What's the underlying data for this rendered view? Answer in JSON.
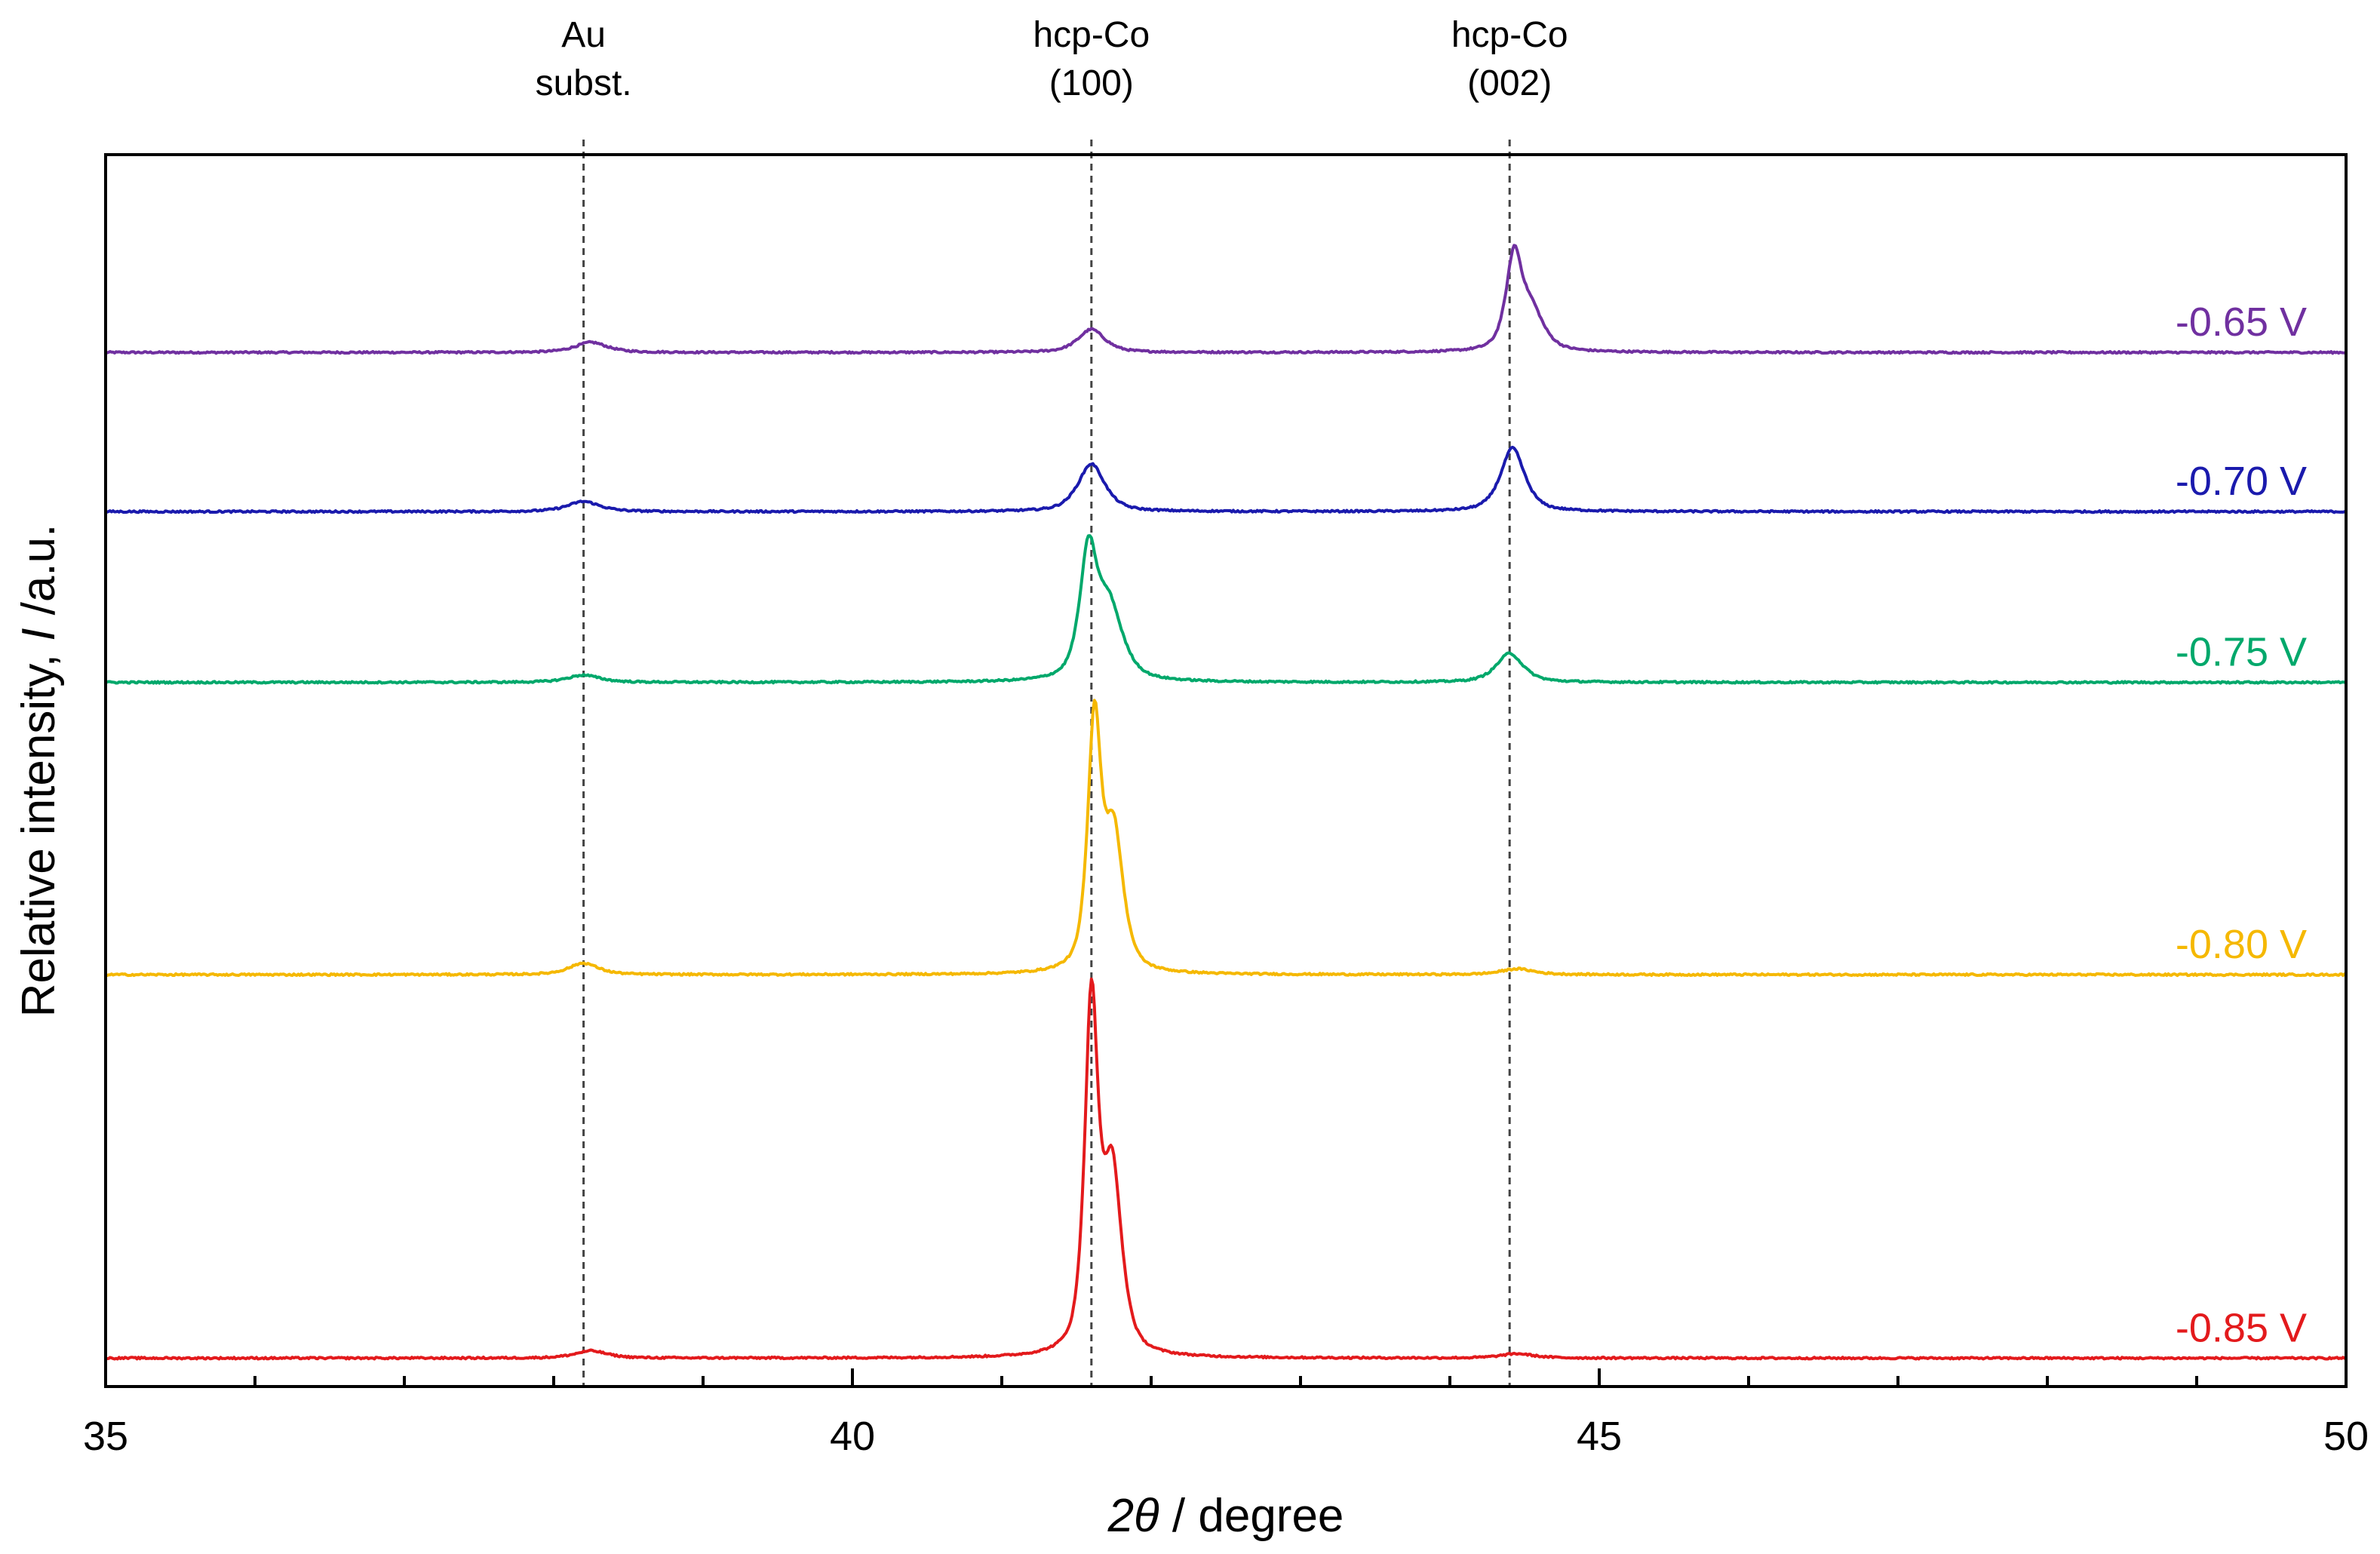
{
  "chart_data": {
    "type": "line",
    "title": "",
    "xlabel": "2θ / degree",
    "xlabel_parts": {
      "symbol": "2θ",
      "unit": " / degree"
    },
    "ylabel": "Relative intensity, I /a.u.",
    "ylabel_parts": {
      "prefix": "Relative intensity, ",
      "symbol": "I",
      "suffix": " /a.u."
    },
    "xlim": [
      35,
      50
    ],
    "ylim": [
      0,
      8.2
    ],
    "x_major_ticks": [
      35,
      40,
      45,
      50
    ],
    "x_tick_labels": [
      "35",
      "40",
      "45",
      "50"
    ],
    "x_minor_step": 1,
    "grid": false,
    "legend": "inline labels at right end of each trace",
    "reference_lines": [
      {
        "x": 38.2,
        "label_lines": [
          "Au",
          "subst."
        ]
      },
      {
        "x": 41.6,
        "label_lines": [
          "hcp-Co",
          "(100)"
        ]
      },
      {
        "x": 44.4,
        "label_lines": [
          "hcp-Co",
          "(002)"
        ]
      }
    ],
    "series": [
      {
        "name": "-0.65 V",
        "color": "#7030A0",
        "baseline": 7.0,
        "peaks": [
          {
            "x": 38.25,
            "height": 0.07,
            "width": 0.12
          },
          {
            "x": 41.6,
            "height": 0.16,
            "width": 0.1
          },
          {
            "x": 44.43,
            "height": 0.64,
            "width": 0.06
          },
          {
            "x": 44.55,
            "height": 0.26,
            "width": 0.09
          }
        ]
      },
      {
        "name": "-0.70 V",
        "color": "#1A1AAD",
        "baseline": 5.9,
        "peaks": [
          {
            "x": 38.2,
            "height": 0.07,
            "width": 0.12
          },
          {
            "x": 41.6,
            "height": 0.33,
            "width": 0.1
          },
          {
            "x": 44.42,
            "height": 0.44,
            "width": 0.09
          }
        ]
      },
      {
        "name": "-0.75 V",
        "color": "#00A86B",
        "baseline": 4.72,
        "peaks": [
          {
            "x": 38.2,
            "height": 0.05,
            "width": 0.12
          },
          {
            "x": 41.58,
            "height": 0.84,
            "width": 0.065
          },
          {
            "x": 41.72,
            "height": 0.5,
            "width": 0.1
          },
          {
            "x": 44.4,
            "height": 0.2,
            "width": 0.1
          }
        ]
      },
      {
        "name": "-0.80 V",
        "color": "#F5B800",
        "baseline": 2.7,
        "peaks": [
          {
            "x": 38.2,
            "height": 0.08,
            "width": 0.11
          },
          {
            "x": 41.62,
            "height": 1.7,
            "width": 0.05
          },
          {
            "x": 41.75,
            "height": 0.95,
            "width": 0.07
          },
          {
            "x": 44.45,
            "height": 0.04,
            "width": 0.12
          }
        ]
      },
      {
        "name": "-0.85 V",
        "color": "#E31A1C",
        "baseline": 0.05,
        "peaks": [
          {
            "x": 38.25,
            "height": 0.05,
            "width": 0.12
          },
          {
            "x": 41.6,
            "height": 2.4,
            "width": 0.05
          },
          {
            "x": 41.74,
            "height": 1.25,
            "width": 0.07
          },
          {
            "x": 44.45,
            "height": 0.03,
            "width": 0.12
          }
        ]
      }
    ]
  }
}
